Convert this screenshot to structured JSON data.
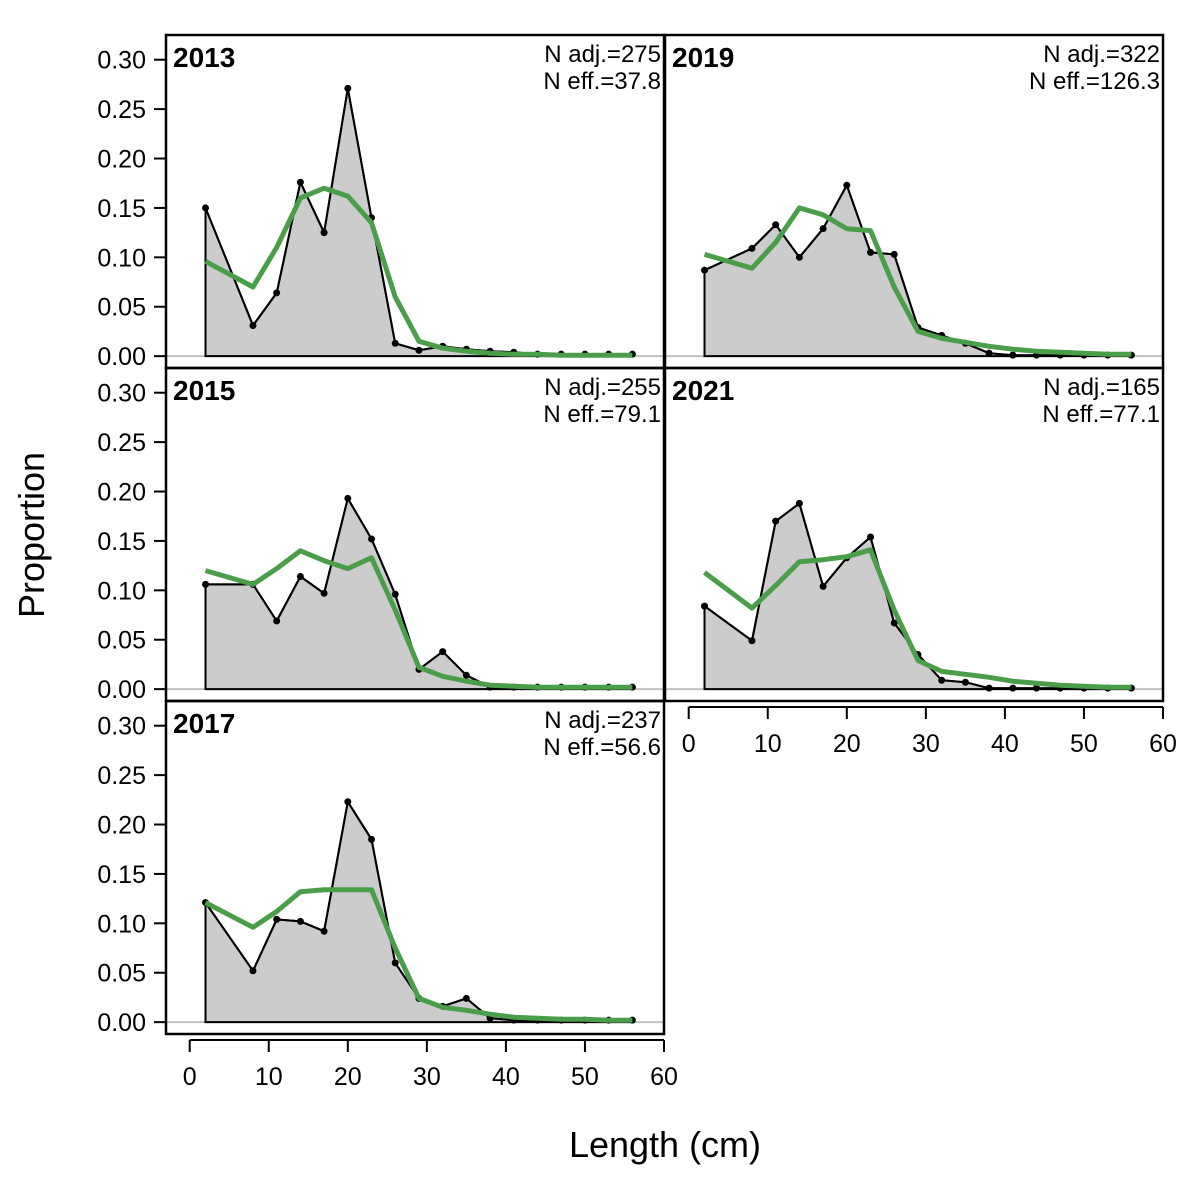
{
  "chart_data": {
    "type": "area",
    "xlabel": "Length (cm)",
    "ylabel": "Proportion",
    "xlim": [
      -3,
      60
    ],
    "ylim": [
      -0.012,
      0.325
    ],
    "x_ticks": [
      0,
      10,
      20,
      30,
      40,
      50,
      60
    ],
    "y_ticks": [
      "0.00",
      "0.05",
      "0.10",
      "0.15",
      "0.20",
      "0.25",
      "0.30"
    ],
    "x": [
      2,
      8,
      11,
      14,
      17,
      20,
      23,
      26,
      29,
      32,
      35,
      38,
      41,
      44,
      47,
      50,
      53,
      56
    ],
    "colors": {
      "observed_fill": "#cccccc",
      "observed_line": "#000000",
      "expected_line": "#4a9e4a",
      "baseline": "#c0c0c0"
    },
    "panels": [
      {
        "year": "2013",
        "n_adj": "N adj.=275",
        "n_eff": "N eff.=37.8",
        "observed": [
          0.15,
          0.031,
          0.064,
          0.176,
          0.125,
          0.271,
          0.14,
          0.013,
          0.006,
          0.01,
          0.007,
          0.005,
          0.004,
          0.002,
          0.002,
          0.002,
          0.002,
          0.002
        ],
        "expected": [
          0.096,
          0.07,
          0.11,
          0.16,
          0.17,
          0.162,
          0.135,
          0.06,
          0.015,
          0.008,
          0.005,
          0.003,
          0.002,
          0.002,
          0.001,
          0.001,
          0.001,
          0.001
        ]
      },
      {
        "year": "2015",
        "n_adj": "N adj.=255",
        "n_eff": "N eff.=79.1",
        "observed": [
          0.106,
          0.106,
          0.069,
          0.114,
          0.097,
          0.193,
          0.152,
          0.096,
          0.02,
          0.038,
          0.014,
          0.002,
          0.002,
          0.002,
          0.002,
          0.002,
          0.002,
          0.002
        ],
        "expected": [
          0.12,
          0.106,
          0.122,
          0.14,
          0.13,
          0.122,
          0.133,
          0.08,
          0.022,
          0.013,
          0.008,
          0.004,
          0.003,
          0.002,
          0.002,
          0.002,
          0.002,
          0.002
        ]
      },
      {
        "year": "2017",
        "n_adj": "N adj.=237",
        "n_eff": "N eff.=56.6",
        "observed": [
          0.121,
          0.052,
          0.104,
          0.102,
          0.092,
          0.223,
          0.185,
          0.06,
          0.024,
          0.016,
          0.024,
          0.004,
          0.002,
          0.002,
          0.002,
          0.002,
          0.002,
          0.002
        ],
        "expected": [
          0.121,
          0.096,
          0.112,
          0.132,
          0.134,
          0.134,
          0.134,
          0.075,
          0.024,
          0.015,
          0.012,
          0.008,
          0.005,
          0.004,
          0.003,
          0.003,
          0.002,
          0.002
        ]
      },
      {
        "year": "2019",
        "n_adj": "N adj.=322",
        "n_eff": "N eff.=126.3",
        "observed": [
          0.087,
          0.109,
          0.133,
          0.1,
          0.129,
          0.173,
          0.105,
          0.103,
          0.029,
          0.021,
          0.013,
          0.003,
          0.001,
          0.001,
          0.001,
          0.001,
          0.001,
          0.001
        ],
        "expected": [
          0.103,
          0.089,
          0.115,
          0.15,
          0.143,
          0.129,
          0.127,
          0.07,
          0.025,
          0.018,
          0.014,
          0.01,
          0.007,
          0.005,
          0.004,
          0.003,
          0.002,
          0.002
        ]
      },
      {
        "year": "2021",
        "n_adj": "N adj.=165",
        "n_eff": "N eff.=77.1",
        "observed": [
          0.084,
          0.049,
          0.17,
          0.188,
          0.104,
          0.133,
          0.154,
          0.067,
          0.035,
          0.009,
          0.007,
          0.001,
          0.001,
          0.001,
          0.001,
          0.001,
          0.001,
          0.001
        ],
        "expected": [
          0.118,
          0.082,
          0.105,
          0.129,
          0.131,
          0.134,
          0.141,
          0.08,
          0.029,
          0.018,
          0.015,
          0.012,
          0.008,
          0.006,
          0.004,
          0.003,
          0.002,
          0.002
        ]
      }
    ]
  }
}
